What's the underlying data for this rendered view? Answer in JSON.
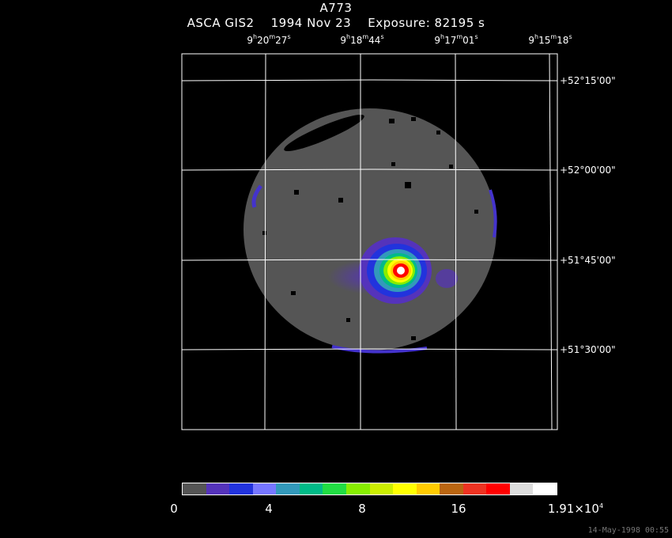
{
  "title": "A773",
  "subtitle": {
    "instrument": "ASCA GIS2",
    "date": "1994 Nov 23",
    "exposure": "Exposure: 82195 s"
  },
  "ra_labels": [
    {
      "h": "9",
      "m": "20",
      "s": "27"
    },
    {
      "h": "9",
      "m": "18",
      "s": "44"
    },
    {
      "h": "9",
      "m": "17",
      "s": "01"
    },
    {
      "h": "9",
      "m": "15",
      "s": "18"
    }
  ],
  "dec_labels": [
    "+52°15'00\"",
    "+52°00'00\"",
    "+51°45'00\"",
    "+51°30'00\""
  ],
  "colorbar": {
    "colors": [
      "#555555",
      "#5533bb",
      "#2233dd",
      "#7777ff",
      "#3399bb",
      "#00bb88",
      "#22dd44",
      "#88ee00",
      "#ccee00",
      "#ffff00",
      "#ffcc00",
      "#bb6611",
      "#ee3322",
      "#ff0000",
      "#dddddd",
      "#ffffff"
    ],
    "ticks": [
      "0",
      "4",
      "8",
      "16"
    ],
    "max_label": {
      "mantissa": "1.91×10",
      "exp": "4"
    }
  },
  "footer": "14-May-1998 00:55"
}
